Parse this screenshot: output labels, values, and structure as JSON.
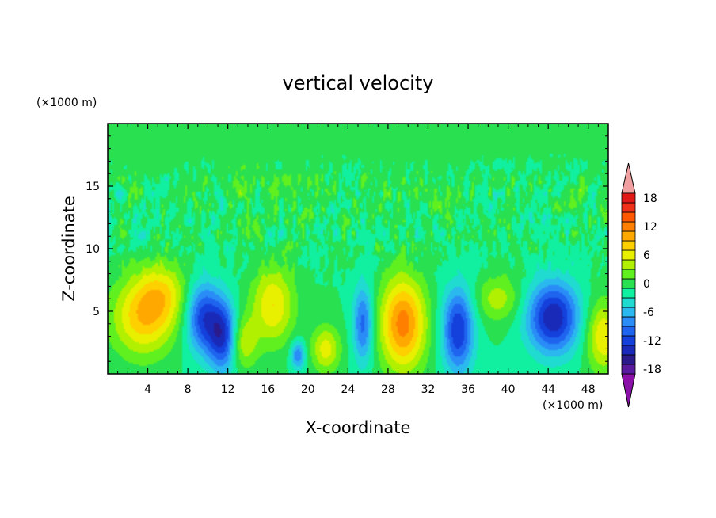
{
  "chart_data": {
    "type": "heatmap",
    "title": "vertical velocity",
    "xlabel": "X-coordinate",
    "ylabel": "Z-coordinate",
    "x_unit": "(×1000 m)",
    "y_unit": "(×1000 m)",
    "xlim": [
      0,
      50
    ],
    "ylim": [
      0,
      20
    ],
    "x_ticks": [
      "4",
      "8",
      "12",
      "16",
      "20",
      "24",
      "28",
      "32",
      "36",
      "40",
      "44",
      "48"
    ],
    "y_ticks": [
      "5",
      "10",
      "15"
    ],
    "colorbar": {
      "levels": [
        -20,
        -18,
        -16,
        -14,
        -12,
        -10,
        -8,
        -6,
        -4,
        -2,
        0,
        2,
        4,
        6,
        8,
        10,
        12,
        14,
        16,
        18,
        20
      ],
      "tick_labels": [
        "18",
        "12",
        "6",
        "0",
        "-6",
        "-12",
        "-18"
      ],
      "colors": [
        "#8a10a8",
        "#5a1a9e",
        "#2a1a8c",
        "#1a2ab8",
        "#1440dc",
        "#1e64ee",
        "#2a8cf6",
        "#2ab8ee",
        "#20dcd0",
        "#10f0a0",
        "#28e050",
        "#60f020",
        "#b0f000",
        "#e8f000",
        "#ffd000",
        "#ffa800",
        "#ff8000",
        "#ff5800",
        "#f03018",
        "#e01818",
        "#f0a0a0"
      ],
      "extend": "both"
    },
    "features": [
      {
        "x": 3.5,
        "z": 4.5,
        "value": 9,
        "sx": 2.2,
        "sz": 2.2
      },
      {
        "x": 5.5,
        "z": 6.5,
        "value": 6,
        "sx": 1.8,
        "sz": 1.8
      },
      {
        "x": 9.5,
        "z": 4.5,
        "value": -11,
        "sx": 1.2,
        "sz": 2.0
      },
      {
        "x": 11.5,
        "z": 3.0,
        "value": -12,
        "sx": 1.0,
        "sz": 2.0
      },
      {
        "x": 13.5,
        "z": 2.5,
        "value": 6,
        "sx": 1.0,
        "sz": 1.5
      },
      {
        "x": 16.5,
        "z": 5.5,
        "value": 8,
        "sx": 1.5,
        "sz": 2.2
      },
      {
        "x": 19.0,
        "z": 1.5,
        "value": -8,
        "sx": 0.5,
        "sz": 0.8
      },
      {
        "x": 21.8,
        "z": 2.0,
        "value": 7,
        "sx": 1.0,
        "sz": 1.3
      },
      {
        "x": 25.5,
        "z": 4.0,
        "value": -9,
        "sx": 0.7,
        "sz": 2.2
      },
      {
        "x": 29.5,
        "z": 4.0,
        "value": 13,
        "sx": 1.6,
        "sz": 2.6
      },
      {
        "x": 35.0,
        "z": 3.5,
        "value": -12,
        "sx": 1.1,
        "sz": 2.4
      },
      {
        "x": 39.0,
        "z": 6.0,
        "value": 5,
        "sx": 1.6,
        "sz": 1.3
      },
      {
        "x": 44.5,
        "z": 4.5,
        "value": -14,
        "sx": 1.8,
        "sz": 2.0
      },
      {
        "x": 49.5,
        "z": 3.0,
        "value": 8,
        "sx": 1.2,
        "sz": 2.0
      }
    ]
  }
}
